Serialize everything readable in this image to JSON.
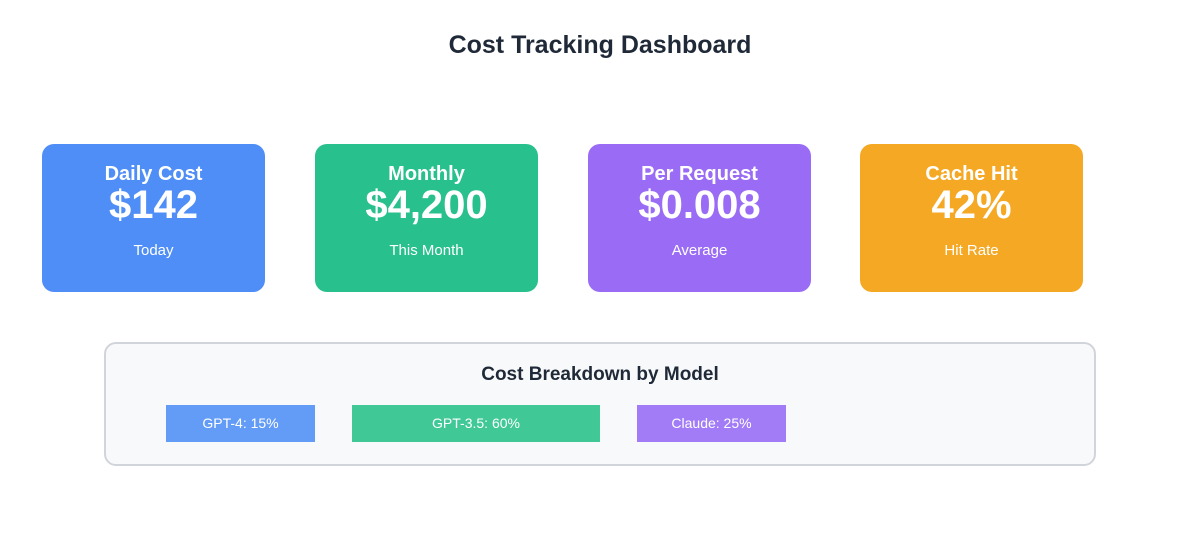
{
  "header": {
    "title": "Cost Tracking Dashboard"
  },
  "cards": [
    {
      "label": "Daily Cost",
      "value": "$142",
      "sub": "Today",
      "color": "#4f8ef7"
    },
    {
      "label": "Monthly",
      "value": "$4,200",
      "sub": "This Month",
      "color": "#28c08c"
    },
    {
      "label": "Per Request",
      "value": "$0.008",
      "sub": "Average",
      "color": "#9a6cf5"
    },
    {
      "label": "Cache Hit",
      "value": "42%",
      "sub": "Hit Rate",
      "color": "#f5a823"
    }
  ],
  "breakdown": {
    "title": "Cost Breakdown by Model",
    "items": [
      {
        "label": "GPT-4: 15%",
        "percent": 15,
        "color": "#639cf6"
      },
      {
        "label": "GPT-3.5: 60%",
        "percent": 60,
        "color": "#40c997"
      },
      {
        "label": "Claude: 25%",
        "percent": 25,
        "color": "#a27cf6"
      }
    ]
  }
}
